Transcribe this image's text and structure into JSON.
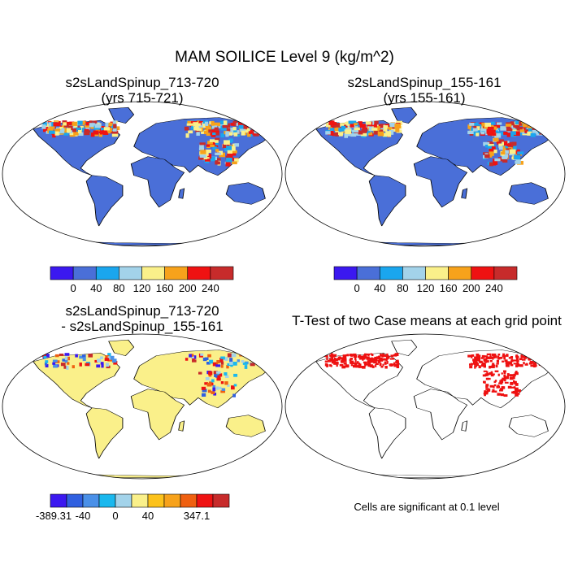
{
  "main_title": "MAM SOILICE Level 9 (kg/m^2)",
  "panels": {
    "p1": {
      "title_line1": "s2sLandSpinup_713-720",
      "title_line2": "(yrs 715-721)"
    },
    "p2": {
      "title_line1": "s2sLandSpinup_155-161",
      "title_line2": "(yrs 155-161)"
    },
    "p3": {
      "title_line1": "s2sLandSpinup_713-720",
      "title_line2": "- s2sLandSpinup_155-161"
    },
    "p4": {
      "title": "T-Test of two Case means at each grid point",
      "note": "Cells are significant at 0.1 level"
    }
  },
  "colors": {
    "land_base": "#4a6fd8",
    "diff_base": "#faf08a",
    "significant": "#ee1111",
    "coast": "#000000"
  },
  "chart_data": [
    {
      "type": "heatmap",
      "title": "s2sLandSpinup_713-720 (yrs 715-721)",
      "variable": "SOILICE Level 9",
      "units": "kg/m^2",
      "colorbar": {
        "labels": [
          "0",
          "40",
          "80",
          "120",
          "160",
          "200",
          "240"
        ],
        "colors": [
          "#3b18f0",
          "#4a6fd8",
          "#1aa6ee",
          "#a3d3ea",
          "#faf08a",
          "#f7a21b",
          "#ef1212",
          "#c72b2b"
        ]
      }
    },
    {
      "type": "heatmap",
      "title": "s2sLandSpinup_155-161 (yrs 155-161)",
      "variable": "SOILICE Level 9",
      "units": "kg/m^2",
      "colorbar": {
        "labels": [
          "0",
          "40",
          "80",
          "120",
          "160",
          "200",
          "240"
        ],
        "colors": [
          "#3b18f0",
          "#4a6fd8",
          "#1aa6ee",
          "#a3d3ea",
          "#faf08a",
          "#f7a21b",
          "#ef1212",
          "#c72b2b"
        ]
      }
    },
    {
      "type": "heatmap",
      "title": "s2sLandSpinup_713-720 - s2sLandSpinup_155-161",
      "variable": "SOILICE Level 9 difference",
      "units": "kg/m^2",
      "colorbar": {
        "labels": [
          "-389.31",
          "-40",
          "0",
          "40",
          "347.1"
        ],
        "label_box_index": [
          0,
          2,
          4,
          6,
          9
        ],
        "colors": [
          "#3b18f0",
          "#3060e0",
          "#4a90e8",
          "#1ab8ee",
          "#a3d3ea",
          "#faf08a",
          "#fcc21b",
          "#f7a21b",
          "#ef6010",
          "#ef1212",
          "#c72b2b"
        ]
      }
    },
    {
      "type": "heatmap",
      "title": "T-Test of two Case means at each grid point",
      "significance_level": 0.1
    }
  ]
}
